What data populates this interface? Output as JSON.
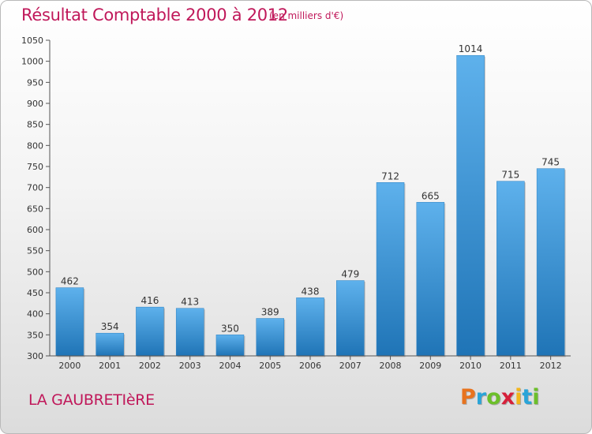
{
  "header": {
    "title": "Résultat Comptable 2000 à 2012",
    "subtitle": "(en milliers d'€)"
  },
  "footer": {
    "location": "LA GAUBRETIèRE",
    "brand_letters": [
      "P",
      "r",
      "o",
      "x",
      "i",
      "t",
      "i"
    ],
    "brand_colors": [
      "#e8731e",
      "#2aa4d8",
      "#6cbf2a",
      "#d6203a",
      "#f2b51b",
      "#2aa4d8",
      "#6cbf2a"
    ]
  },
  "colors": {
    "title": "#c0185a",
    "bar_top": "#5eb1ec",
    "bar_bottom": "#1f74b6",
    "axis": "#555555"
  },
  "chart_data": {
    "type": "bar",
    "title": "Résultat Comptable 2000 à 2012",
    "subtitle": "(en milliers d'€)",
    "categories": [
      "2000",
      "2001",
      "2002",
      "2003",
      "2004",
      "2005",
      "2006",
      "2007",
      "2008",
      "2009",
      "2010",
      "2011",
      "2012"
    ],
    "values": [
      462,
      354,
      416,
      413,
      350,
      389,
      438,
      479,
      712,
      665,
      1014,
      715,
      745
    ],
    "ylim": [
      300,
      1050
    ],
    "yticks": [
      300,
      350,
      400,
      450,
      500,
      550,
      600,
      650,
      700,
      750,
      800,
      850,
      900,
      950,
      1000,
      1050
    ],
    "grid": false,
    "data_labels": true,
    "xlabel": "",
    "ylabel": ""
  }
}
